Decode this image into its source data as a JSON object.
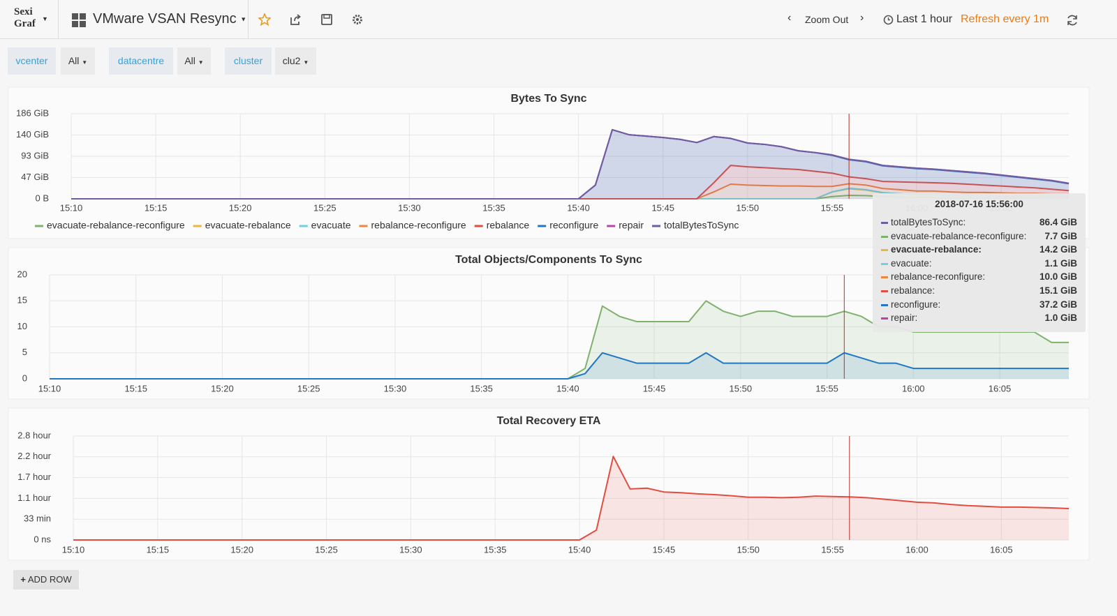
{
  "header": {
    "logo": [
      "Sexi",
      "Graf"
    ],
    "title": "VMware VSAN Resync",
    "zoom": "Zoom Out",
    "range": "Last 1 hour",
    "refresh": "Refresh every 1m"
  },
  "filters": [
    {
      "label": "vcenter",
      "value": "All"
    },
    {
      "label": "datacentre",
      "value": "All"
    },
    {
      "label": "cluster",
      "value": "clu2"
    }
  ],
  "add_row": "ADD ROW",
  "tooltip": {
    "title": "2018-07-16 15:56:00",
    "rows": [
      {
        "name": "totalBytesToSync:",
        "value": "86.4 GiB",
        "color": "#705da0"
      },
      {
        "name": "evacuate-rebalance-reconfigure:",
        "value": "7.7 GiB",
        "color": "#7eb26d"
      },
      {
        "name": "evacuate-rebalance:",
        "value": "14.2 GiB",
        "color": "#eab839"
      },
      {
        "name": "evacuate:",
        "value": "1.1 GiB",
        "color": "#6ed0e0"
      },
      {
        "name": "rebalance-reconfigure:",
        "value": "10.0 GiB",
        "color": "#ef843c"
      },
      {
        "name": "rebalance:",
        "value": "15.1 GiB",
        "color": "#e24d42"
      },
      {
        "name": "reconfigure:",
        "value": "37.2 GiB",
        "color": "#1f78c1"
      },
      {
        "name": "repair:",
        "value": "1.0 GiB",
        "color": "#ba43a9"
      }
    ]
  },
  "chart_data": [
    {
      "type": "line",
      "title": "Bytes To Sync",
      "stack": true,
      "legend": "bottom",
      "grid": true,
      "x": [
        "15:10",
        "15:40",
        "15:41",
        "15:42",
        "15:43",
        "15:44",
        "15:45",
        "15:46",
        "15:47",
        "15:48",
        "15:49",
        "15:50",
        "15:51",
        "15:52",
        "15:53",
        "15:54",
        "15:55",
        "15:56",
        "15:57",
        "15:58",
        "15:59",
        "16:00",
        "16:01",
        "16:02",
        "16:03",
        "16:04",
        "16:05",
        "16:06",
        "16:07",
        "16:08",
        "16:09"
      ],
      "xlim": [
        "15:10",
        "16:09"
      ],
      "xticks": [
        "15:10",
        "15:15",
        "15:20",
        "15:25",
        "15:30",
        "15:35",
        "15:40",
        "15:45",
        "15:50",
        "15:55",
        "16:00",
        "16:05"
      ],
      "ylim": [
        0,
        186
      ],
      "yticks": [
        {
          "value": 0,
          "label": "0 B"
        },
        {
          "value": 46.5,
          "label": "47 GiB"
        },
        {
          "value": 93,
          "label": "93 GiB"
        },
        {
          "value": 139.5,
          "label": "140 GiB"
        },
        {
          "value": 186,
          "label": "186 GiB"
        }
      ],
      "series": [
        {
          "name": "evacuate-rebalance-reconfigure",
          "color": "#7eb26d",
          "values": [
            0,
            0,
            0,
            0,
            0,
            0,
            0,
            0,
            0,
            0,
            0,
            0,
            0,
            0,
            0,
            0,
            5,
            7.7,
            7,
            5,
            4,
            3,
            3,
            2,
            2,
            2,
            2,
            2,
            2,
            2,
            2
          ]
        },
        {
          "name": "evacuate-rebalance",
          "color": "#eab839",
          "values": [
            0,
            0,
            0,
            0,
            0,
            0,
            0,
            0,
            0,
            0,
            0,
            0,
            0,
            0,
            0,
            0,
            10,
            14.2,
            12,
            8,
            7,
            6,
            6,
            5,
            5,
            5,
            4,
            4,
            4,
            3,
            3
          ]
        },
        {
          "name": "evacuate",
          "color": "#6ed0e0",
          "values": [
            0,
            0,
            0,
            0,
            0,
            0,
            0,
            0,
            0,
            0,
            0,
            0,
            0,
            0,
            0,
            0,
            0,
            1.1,
            1,
            0.5,
            0,
            0,
            0,
            0,
            0,
            0,
            0,
            0,
            0,
            0,
            0
          ]
        },
        {
          "name": "rebalance-reconfigure",
          "color": "#ef843c",
          "values": [
            0,
            0,
            0,
            0,
            0,
            0,
            0,
            0,
            0,
            15,
            32,
            30,
            29,
            28,
            28,
            27,
            12,
            10,
            10,
            9,
            9,
            8,
            8,
            8,
            7,
            7,
            7,
            6,
            6,
            6,
            6
          ]
        },
        {
          "name": "rebalance",
          "color": "#e24d42",
          "values": [
            0,
            0,
            0,
            0,
            0,
            0,
            0,
            0,
            0,
            20,
            41,
            40,
            39,
            38,
            36,
            33,
            29,
            15.1,
            14,
            15.5,
            17,
            19,
            18,
            19,
            18,
            16,
            15,
            14,
            12,
            10,
            7
          ]
        },
        {
          "name": "reconfigure",
          "color": "#1f78c1",
          "values": [
            0,
            0,
            30,
            151,
            140,
            137,
            134,
            130,
            123,
            101,
            59,
            52,
            51,
            48,
            41,
            41,
            39,
            37.2,
            37,
            34,
            32,
            30,
            29,
            27,
            26,
            25,
            23,
            21,
            19,
            18,
            15
          ]
        },
        {
          "name": "repair",
          "color": "#ba43a9",
          "values": [
            0,
            0,
            0,
            0,
            0,
            0,
            0,
            0,
            0,
            0,
            0,
            0,
            0,
            0,
            0,
            0,
            1,
            1,
            1,
            1,
            1,
            1,
            1,
            1,
            1,
            1,
            1,
            1,
            1,
            1,
            1
          ]
        },
        {
          "name": "totalBytesToSync",
          "color": "#705da0",
          "stack": false,
          "values": [
            0,
            0,
            30,
            151,
            140,
            137,
            134,
            130,
            123,
            136,
            132,
            122,
            119,
            114,
            105,
            101,
            96,
            86.4,
            82,
            73,
            70,
            67,
            65,
            62,
            59,
            56,
            52,
            48,
            44,
            40,
            34
          ]
        }
      ]
    },
    {
      "type": "line",
      "title": "Total Objects/Components To Sync",
      "grid": true,
      "x": [
        "15:10",
        "15:40",
        "15:41",
        "15:42",
        "15:43",
        "15:44",
        "15:45",
        "15:46",
        "15:47",
        "15:48",
        "15:49",
        "15:50",
        "15:51",
        "15:52",
        "15:53",
        "15:54",
        "15:55",
        "15:56",
        "15:57",
        "15:58",
        "15:59",
        "16:00",
        "16:01",
        "16:02",
        "16:03",
        "16:04",
        "16:05",
        "16:06",
        "16:07",
        "16:08",
        "16:09"
      ],
      "xlim": [
        "15:10",
        "16:09"
      ],
      "xticks": [
        "15:10",
        "15:15",
        "15:20",
        "15:25",
        "15:30",
        "15:35",
        "15:40",
        "15:45",
        "15:50",
        "15:55",
        "16:00",
        "16:05"
      ],
      "ylim": [
        0,
        20
      ],
      "yticks": [
        0,
        5,
        10,
        15,
        20
      ],
      "series": [
        {
          "color": "#7eb26d",
          "values": [
            0,
            0,
            2,
            14,
            12,
            11,
            11,
            11,
            11,
            15,
            13,
            12,
            13,
            13,
            12,
            12,
            12,
            13,
            12,
            10,
            10,
            9,
            9,
            9,
            9,
            9,
            9,
            9,
            9,
            7,
            7
          ]
        },
        {
          "color": "#1f78c1",
          "values": [
            0,
            0,
            1,
            5,
            4,
            3,
            3,
            3,
            3,
            5,
            3,
            3,
            3,
            3,
            3,
            3,
            3,
            5,
            4,
            3,
            3,
            2,
            2,
            2,
            2,
            2,
            2,
            2,
            2,
            2,
            2
          ]
        }
      ]
    },
    {
      "type": "line",
      "title": "Total Recovery ETA",
      "grid": true,
      "x": [
        "15:10",
        "15:40",
        "15:41",
        "15:42",
        "15:43",
        "15:44",
        "15:45",
        "15:46",
        "15:47",
        "15:48",
        "15:49",
        "15:50",
        "15:51",
        "15:52",
        "15:53",
        "15:54",
        "15:55",
        "15:56",
        "15:57",
        "15:58",
        "15:59",
        "16:00",
        "16:01",
        "16:02",
        "16:03",
        "16:04",
        "16:05",
        "16:06",
        "16:07",
        "16:08",
        "16:09"
      ],
      "xlim": [
        "15:10",
        "16:09"
      ],
      "xticks": [
        "15:10",
        "15:15",
        "15:20",
        "15:25",
        "15:30",
        "15:35",
        "15:40",
        "15:45",
        "15:50",
        "15:55",
        "16:00",
        "16:05"
      ],
      "ylim": [
        0,
        2.75
      ],
      "yticks": [
        {
          "value": 0,
          "label": "0 ns"
        },
        {
          "value": 0.55,
          "label": "33 min"
        },
        {
          "value": 1.1,
          "label": "1.1 hour"
        },
        {
          "value": 1.65,
          "label": "1.7 hour"
        },
        {
          "value": 2.2,
          "label": "2.2 hour"
        },
        {
          "value": 2.75,
          "label": "2.8 hour"
        }
      ],
      "series": [
        {
          "color": "#e24d42",
          "values": [
            0,
            0,
            0.26,
            2.21,
            1.35,
            1.37,
            1.27,
            1.25,
            1.22,
            1.2,
            1.17,
            1.13,
            1.13,
            1.12,
            1.13,
            1.16,
            1.15,
            1.14,
            1.12,
            1.08,
            1.04,
            1,
            0.98,
            0.94,
            0.91,
            0.89,
            0.87,
            0.87,
            0.86,
            0.85,
            0.83
          ]
        }
      ]
    }
  ]
}
